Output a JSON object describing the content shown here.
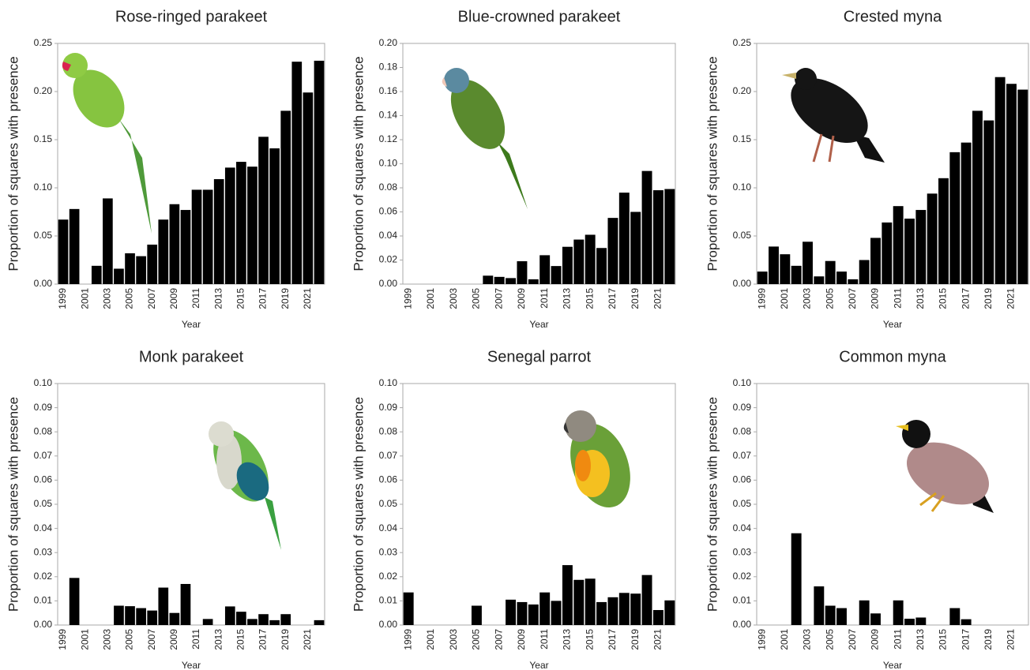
{
  "chart_data": [
    {
      "type": "bar",
      "title": "Rose-ringed parakeet",
      "ylabel": "Proportion of squares with presence",
      "xlabel": "Year",
      "color": "#000000",
      "categories": [
        "1999",
        null,
        "2001",
        null,
        "2003",
        null,
        "2005",
        null,
        "2007",
        null,
        "2009",
        null,
        "2011",
        null,
        "2013",
        null,
        "2015",
        null,
        "2017",
        null,
        "2019",
        null,
        "2021",
        null
      ],
      "values": [
        0.067,
        0.078,
        0,
        0.019,
        0.089,
        0.016,
        0.032,
        0.029,
        0.041,
        0.067,
        0.083,
        0.077,
        0.098,
        0.098,
        0.109,
        0.121,
        0.127,
        0.122,
        0.153,
        0.141,
        0.18,
        0.231,
        0.199,
        0.232
      ],
      "ylim": [
        0,
        0.25
      ],
      "yticks": [
        {
          "value": 0,
          "label": "0.00"
        },
        {
          "value": 0.05,
          "label": "0.05"
        },
        {
          "value": 0.1,
          "label": "0.10"
        },
        {
          "value": 0.15,
          "label": "0.15"
        },
        {
          "value": 0.2,
          "label": "0.20"
        },
        {
          "value": 0.25,
          "label": "0.25"
        }
      ]
    },
    {
      "type": "bar",
      "title": "Blue-crowned parakeet",
      "ylabel": "Proportion of squares with presence",
      "xlabel": "Year",
      "color": "#000000",
      "categories": [
        "1999",
        null,
        "2001",
        null,
        "2003",
        null,
        "2005",
        null,
        "2007",
        null,
        "2009",
        null,
        "2011",
        null,
        "2013",
        null,
        "2015",
        null,
        "2017",
        null,
        "2019",
        null,
        "2021",
        null
      ],
      "values": [
        0,
        0,
        0,
        0,
        0,
        0,
        0,
        0.007,
        0.006,
        0.005,
        0.019,
        0.004,
        0.024,
        0.015,
        0.031,
        0.037,
        0.041,
        0.03,
        0.055,
        0.076,
        0.06,
        0.094,
        0.078,
        0.079
      ],
      "ylim": [
        0,
        0.2
      ],
      "yticks": [
        {
          "value": 0,
          "label": "0.00"
        },
        {
          "value": 0.02,
          "label": "0.02"
        },
        {
          "value": 0.04,
          "label": "0.04"
        },
        {
          "value": 0.06,
          "label": "0.06"
        },
        {
          "value": 0.08,
          "label": "0.08"
        },
        {
          "value": 0.1,
          "label": "0.10"
        },
        {
          "value": 0.12,
          "label": "0.12"
        },
        {
          "value": 0.14,
          "label": "0.14"
        },
        {
          "value": 0.16,
          "label": "0.16"
        },
        {
          "value": 0.18,
          "label": "0.18"
        },
        {
          "value": 0.2,
          "label": "0.20"
        }
      ]
    },
    {
      "type": "bar",
      "title": "Crested myna",
      "ylabel": "Proportion of squares with presence",
      "xlabel": "Year",
      "color": "#000000",
      "categories": [
        "1999",
        null,
        "2001",
        null,
        "2003",
        null,
        "2005",
        null,
        "2007",
        null,
        "2009",
        null,
        "2011",
        null,
        "2013",
        null,
        "2015",
        null,
        "2017",
        null,
        "2019",
        null,
        "2021",
        null
      ],
      "values": [
        0.013,
        0.039,
        0.031,
        0.019,
        0.044,
        0.008,
        0.024,
        0.013,
        0.005,
        0.025,
        0.048,
        0.064,
        0.081,
        0.068,
        0.077,
        0.094,
        0.11,
        0.137,
        0.147,
        0.18,
        0.17,
        0.215,
        0.208,
        0.202
      ],
      "ylim": [
        0,
        0.25
      ],
      "yticks": [
        {
          "value": 0,
          "label": "0.00"
        },
        {
          "value": 0.05,
          "label": "0.05"
        },
        {
          "value": 0.1,
          "label": "0.10"
        },
        {
          "value": 0.15,
          "label": "0.15"
        },
        {
          "value": 0.2,
          "label": "0.20"
        },
        {
          "value": 0.25,
          "label": "0.25"
        }
      ]
    },
    {
      "type": "bar",
      "title": "Monk parakeet",
      "ylabel": "Proportion of squares with presence",
      "xlabel": "Year",
      "color": "#000000",
      "categories": [
        "1999",
        null,
        "2001",
        null,
        "2003",
        null,
        "2005",
        null,
        "2007",
        null,
        "2009",
        null,
        "2011",
        null,
        "2013",
        null,
        "2015",
        null,
        "2017",
        null,
        "2019",
        null,
        "2021",
        null
      ],
      "values": [
        0,
        0.0195,
        0,
        0,
        0,
        0.008,
        0.0078,
        0.007,
        0.006,
        0.0155,
        0.005,
        0.017,
        0,
        0.0025,
        0,
        0.0077,
        0.0055,
        0.0025,
        0.0045,
        0.002,
        0.0045,
        0,
        0,
        0.002
      ],
      "ylim": [
        0,
        0.1
      ],
      "yticks": [
        {
          "value": 0,
          "label": "0.00"
        },
        {
          "value": 0.01,
          "label": "0.01"
        },
        {
          "value": 0.02,
          "label": "0.02"
        },
        {
          "value": 0.03,
          "label": "0.03"
        },
        {
          "value": 0.04,
          "label": "0.04"
        },
        {
          "value": 0.05,
          "label": "0.05"
        },
        {
          "value": 0.06,
          "label": "0.06"
        },
        {
          "value": 0.07,
          "label": "0.07"
        },
        {
          "value": 0.08,
          "label": "0.08"
        },
        {
          "value": 0.09,
          "label": "0.09"
        },
        {
          "value": 0.1,
          "label": "0.10"
        }
      ]
    },
    {
      "type": "bar",
      "title": "Senegal parrot",
      "ylabel": "Proportion of squares with presence",
      "xlabel": "Year",
      "color": "#000000",
      "categories": [
        "1999",
        null,
        "2001",
        null,
        "2003",
        null,
        "2005",
        null,
        "2007",
        null,
        "2009",
        null,
        "2011",
        null,
        "2013",
        null,
        "2015",
        null,
        "2017",
        null,
        "2019",
        null,
        "2021",
        null
      ],
      "values": [
        0.0135,
        0,
        0,
        0,
        0,
        0,
        0.008,
        0,
        0,
        0.0105,
        0.0095,
        0.0085,
        0.0135,
        0.01,
        0.0248,
        0.0187,
        0.0192,
        0.0095,
        0.0115,
        0.0133,
        0.013,
        0.0207,
        0.0062,
        0.0102
      ],
      "ylim": [
        0,
        0.1
      ],
      "yticks": [
        {
          "value": 0,
          "label": "0.00"
        },
        {
          "value": 0.01,
          "label": "0.01"
        },
        {
          "value": 0.02,
          "label": "0.02"
        },
        {
          "value": 0.03,
          "label": "0.03"
        },
        {
          "value": 0.04,
          "label": "0.04"
        },
        {
          "value": 0.05,
          "label": "0.05"
        },
        {
          "value": 0.06,
          "label": "0.06"
        },
        {
          "value": 0.07,
          "label": "0.07"
        },
        {
          "value": 0.08,
          "label": "0.08"
        },
        {
          "value": 0.09,
          "label": "0.09"
        },
        {
          "value": 0.1,
          "label": "0.10"
        }
      ]
    },
    {
      "type": "bar",
      "title": "Common myna",
      "ylabel": "Proportion of squares with presence",
      "xlabel": "Year",
      "color": "#000000",
      "categories": [
        "1999",
        null,
        "2001",
        null,
        "2003",
        null,
        "2005",
        null,
        "2007",
        null,
        "2009",
        null,
        "2011",
        null,
        "2013",
        null,
        "2015",
        null,
        "2017",
        null,
        "2019",
        null,
        "2021",
        null
      ],
      "values": [
        0,
        0,
        0,
        0.038,
        0,
        0.016,
        0.008,
        0.007,
        0,
        0.0102,
        0.0048,
        0,
        0.0102,
        0.0026,
        0.0031,
        0,
        0,
        0.007,
        0.0024,
        0,
        0,
        0,
        0,
        0
      ],
      "ylim": [
        0,
        0.1
      ],
      "yticks": [
        {
          "value": 0,
          "label": "0.00"
        },
        {
          "value": 0.01,
          "label": "0.01"
        },
        {
          "value": 0.02,
          "label": "0.02"
        },
        {
          "value": 0.03,
          "label": "0.03"
        },
        {
          "value": 0.04,
          "label": "0.04"
        },
        {
          "value": 0.05,
          "label": "0.05"
        },
        {
          "value": 0.06,
          "label": "0.06"
        },
        {
          "value": 0.07,
          "label": "0.07"
        },
        {
          "value": 0.08,
          "label": "0.08"
        },
        {
          "value": 0.09,
          "label": "0.09"
        },
        {
          "value": 0.1,
          "label": "0.10"
        }
      ]
    }
  ]
}
